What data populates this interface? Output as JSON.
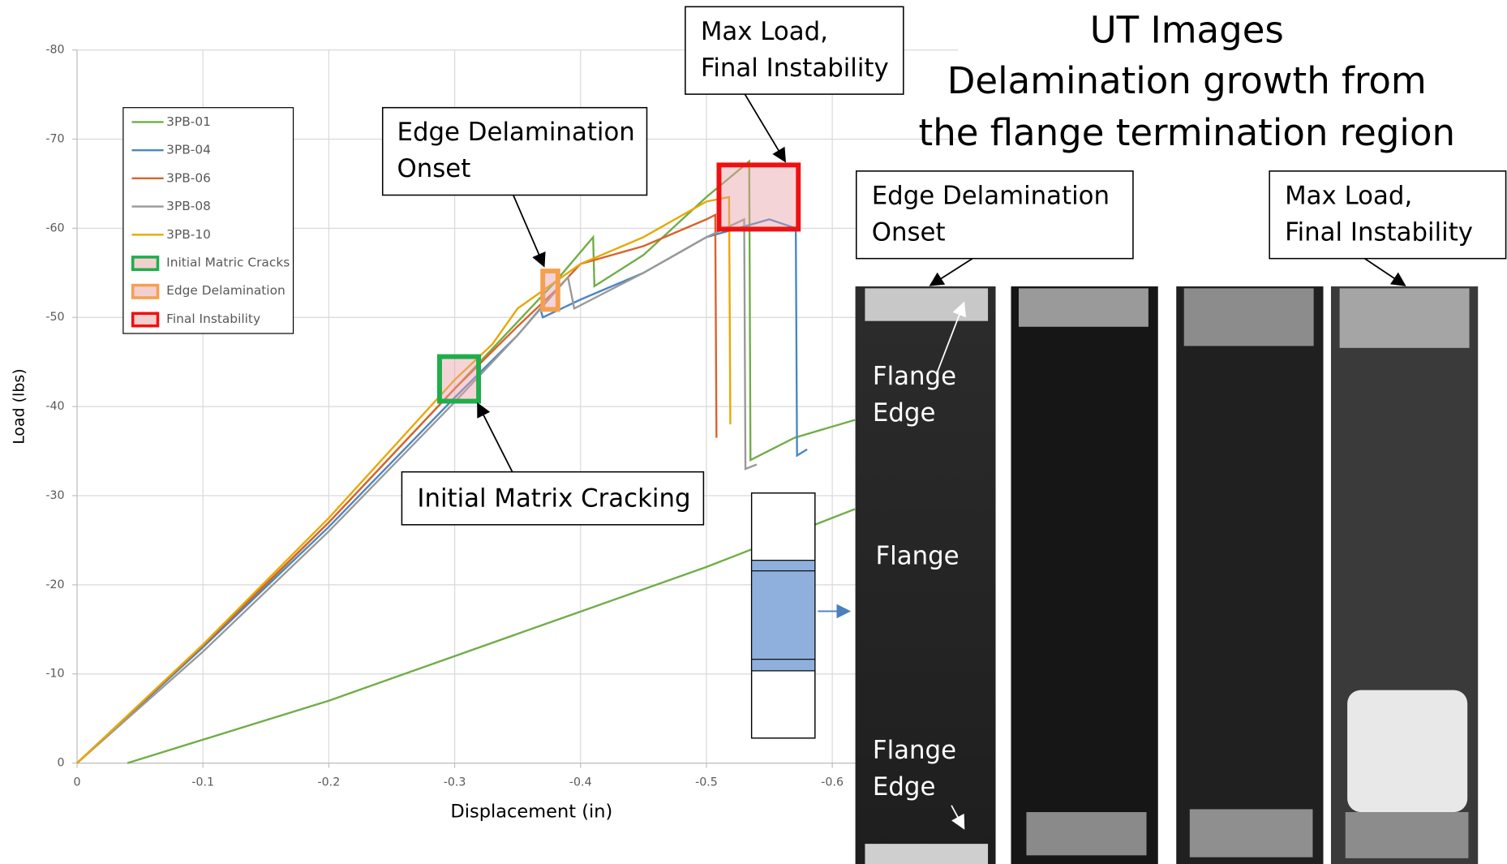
{
  "chart_data": {
    "type": "line",
    "xlabel": "Displacement (in)",
    "ylabel": "Load (lbs)",
    "xlim": [
      0,
      -0.7
    ],
    "ylim": [
      0,
      -80
    ],
    "xticks": [
      0,
      -0.1,
      -0.2,
      -0.3,
      -0.4,
      -0.5,
      -0.6
    ],
    "yticks": [
      0,
      -10,
      -20,
      -30,
      -40,
      -50,
      -60,
      -70,
      -80
    ],
    "grid": true,
    "legend": "upper left",
    "series": [
      {
        "name": "3PB-01",
        "color": "#70ad47",
        "x": [
          0,
          -0.05,
          -0.1,
          -0.15,
          -0.2,
          -0.25,
          -0.3,
          -0.35,
          -0.38,
          -0.41,
          -0.411,
          -0.45,
          -0.5,
          -0.534,
          -0.535,
          -0.57,
          -0.618,
          null,
          -0.04,
          -0.2,
          -0.4,
          -0.5,
          -0.618
        ],
        "values": [
          0,
          -6.5,
          -13,
          -20,
          -27,
          -34.5,
          -42,
          -49.5,
          -54,
          -59,
          -53.5,
          -57,
          -63.5,
          -67.5,
          -34,
          -36.5,
          -38.5,
          null,
          0,
          -7,
          -17,
          -22,
          -28.5
        ]
      },
      {
        "name": "3PB-04",
        "color": "#4a86c5",
        "x": [
          0,
          -0.1,
          -0.2,
          -0.3,
          -0.35,
          -0.368,
          -0.37,
          -0.4,
          -0.45,
          -0.5,
          -0.55,
          -0.571,
          -0.572,
          -0.58
        ],
        "values": [
          0,
          -13,
          -26.5,
          -41,
          -48,
          -51,
          -50,
          -52,
          -55,
          -59,
          -61,
          -60,
          -34.5,
          -35.2
        ]
      },
      {
        "name": "3PB-06",
        "color": "#d9622b",
        "x": [
          0,
          -0.1,
          -0.2,
          -0.3,
          -0.35,
          -0.38,
          -0.4,
          -0.45,
          -0.5,
          -0.507,
          -0.508
        ],
        "values": [
          0,
          -13.2,
          -27,
          -42,
          -49,
          -53,
          -56,
          -58,
          -61,
          -61.5,
          -36.5
        ]
      },
      {
        "name": "3PB-08",
        "color": "#999999",
        "x": [
          0,
          -0.1,
          -0.2,
          -0.3,
          -0.35,
          -0.39,
          -0.395,
          -0.45,
          -0.5,
          -0.53,
          -0.531,
          -0.54
        ],
        "values": [
          0,
          -12.5,
          -26,
          -40.5,
          -48,
          -54.5,
          -51,
          -55,
          -59,
          -61,
          -33,
          -33.5
        ]
      },
      {
        "name": "3PB-10",
        "color": "#e8a800",
        "x": [
          0,
          -0.1,
          -0.2,
          -0.3,
          -0.33,
          -0.35,
          -0.36,
          -0.4,
          -0.45,
          -0.5,
          -0.518,
          -0.519
        ],
        "values": [
          0,
          -13.3,
          -27.5,
          -43,
          -47,
          -51,
          -52,
          -56,
          -59,
          -63,
          -63.5,
          -38
        ]
      }
    ],
    "highlights": [
      {
        "name": "Initial Matric Cracks",
        "color": "#1fae4a",
        "x": [
          -0.288,
          -0.319
        ],
        "y": [
          -40.6,
          -45.6
        ]
      },
      {
        "name": "Edge Delamination",
        "color": "#f5a050",
        "x": [
          -0.37,
          -0.382
        ],
        "y": [
          -50.9,
          -55.2
        ]
      },
      {
        "name": "Final Instability",
        "color": "#ee1111",
        "x": [
          -0.51,
          -0.573
        ],
        "y": [
          -59.9,
          -67.1
        ]
      }
    ],
    "annotations": [
      {
        "lines": [
          "Max Load,",
          "Final Instability"
        ]
      },
      {
        "lines": [
          "Edge Delamination",
          "Onset"
        ]
      },
      {
        "lines": [
          "Initial Matrix Cracking"
        ]
      }
    ]
  },
  "ut_panel": {
    "title_lines": [
      "UT Images",
      "Delamination growth from",
      "the flange termination region"
    ],
    "callouts": [
      {
        "lines": [
          "Edge Delamination",
          "Onset"
        ]
      },
      {
        "lines": [
          "Max Load,",
          "Final Instability"
        ]
      }
    ],
    "labels": [
      {
        "lines": [
          "Flange",
          "Edge"
        ]
      },
      {
        "lines": [
          "Flange"
        ]
      },
      {
        "lines": [
          "Flange",
          "Edge"
        ]
      }
    ]
  }
}
